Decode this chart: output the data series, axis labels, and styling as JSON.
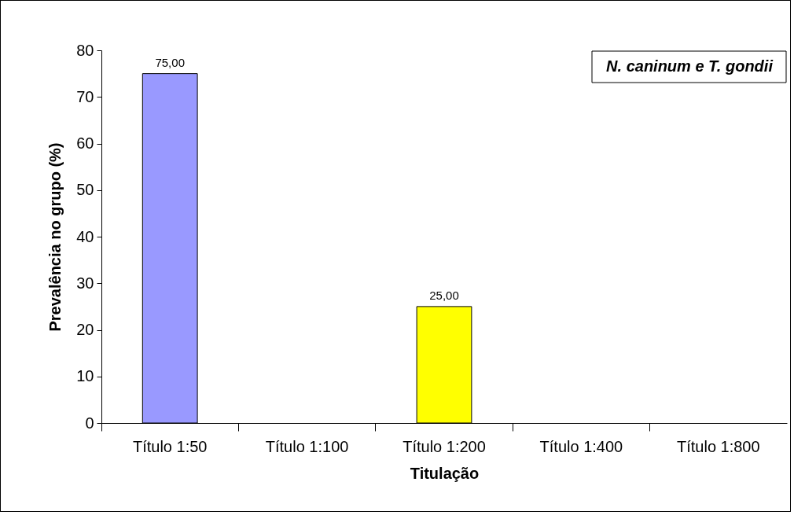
{
  "chart_data": {
    "type": "bar",
    "xlabel": "Titulação",
    "ylabel": "Prevalência no grupo (%)",
    "annotations": [
      "N. caninum e T. gondii"
    ],
    "categories": [
      "Título 1:50",
      "Título 1:100",
      "Título 1:200",
      "Título 1:400",
      "Título 1:800"
    ],
    "values": [
      75,
      null,
      25,
      null,
      null
    ],
    "colors": [
      "#9999ff",
      null,
      "#ffff00",
      null,
      null
    ],
    "value_labels": [
      "75,00",
      null,
      "25,00",
      null,
      null
    ],
    "ylim": [
      0,
      80
    ],
    "yticks": [
      0,
      10,
      20,
      30,
      40,
      50,
      60,
      70,
      80
    ],
    "grid": false
  }
}
